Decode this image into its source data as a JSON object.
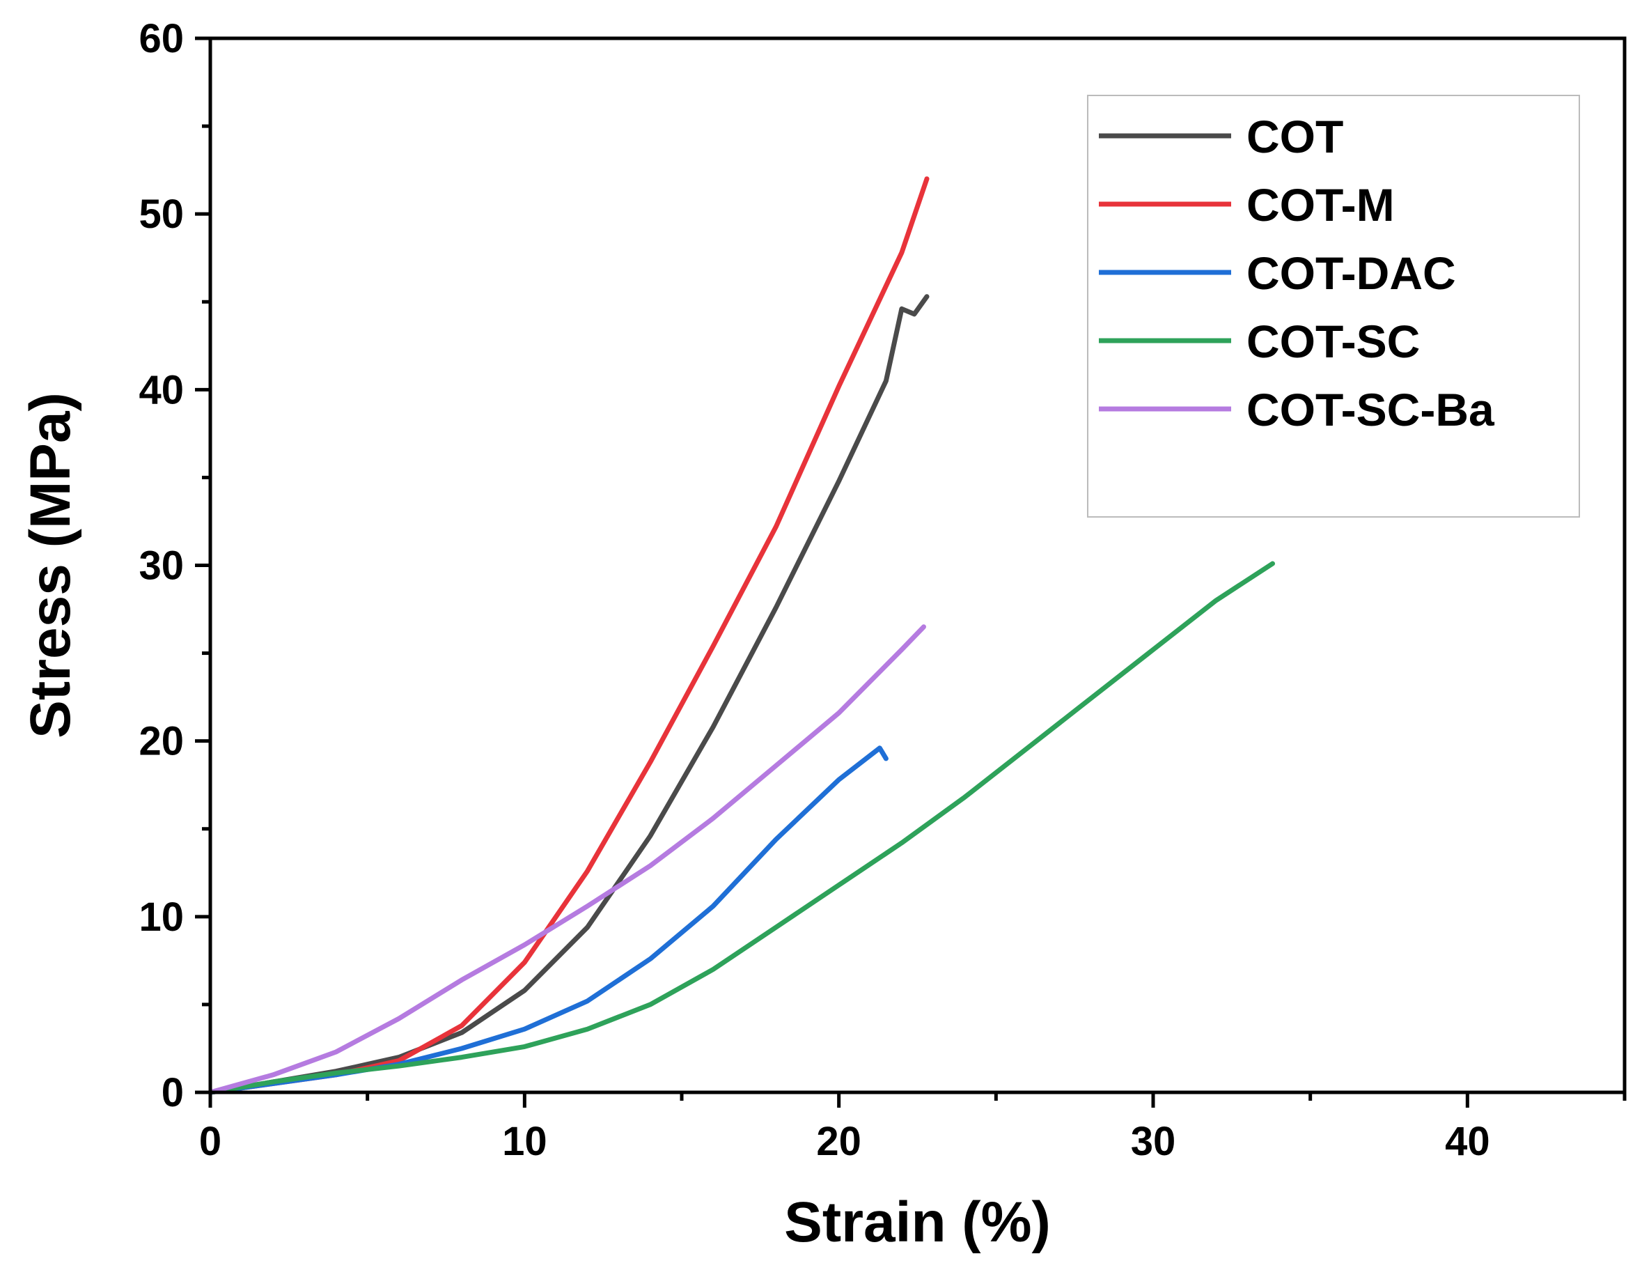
{
  "chart_data": {
    "type": "line",
    "title": "",
    "xlabel": "Strain (%)",
    "ylabel": "Stress (MPa)",
    "xlim": [
      0,
      45
    ],
    "ylim": [
      0,
      60
    ],
    "xticks": [
      0,
      10,
      20,
      30,
      40
    ],
    "yticks": [
      0,
      10,
      20,
      30,
      40,
      50,
      60
    ],
    "grid": false,
    "legend_position": "top-right",
    "series": [
      {
        "name": "COT",
        "color": "#4a4a4a",
        "x": [
          0,
          2,
          4,
          6,
          8,
          10,
          12,
          14,
          16,
          18,
          20,
          21.5,
          22,
          22.4,
          22.8
        ],
        "y": [
          0,
          0.6,
          1.2,
          2.0,
          3.4,
          5.8,
          9.4,
          14.6,
          20.8,
          27.6,
          34.8,
          40.5,
          44.6,
          44.3,
          45.3
        ]
      },
      {
        "name": "COT-M",
        "color": "#e8333a",
        "x": [
          0,
          2,
          4,
          6,
          8,
          10,
          12,
          14,
          16,
          18,
          20,
          22,
          22.8
        ],
        "y": [
          0,
          0.5,
          1.0,
          1.8,
          3.8,
          7.4,
          12.6,
          18.8,
          25.4,
          32.2,
          40.2,
          47.8,
          52.0
        ]
      },
      {
        "name": "COT-DAC",
        "color": "#1f6fd6",
        "x": [
          0,
          2,
          4,
          6,
          8,
          10,
          12,
          14,
          16,
          18,
          20,
          21.3,
          21.5
        ],
        "y": [
          0,
          0.5,
          1.0,
          1.6,
          2.5,
          3.6,
          5.2,
          7.6,
          10.6,
          14.4,
          17.8,
          19.6,
          19.0
        ]
      },
      {
        "name": "COT-SC",
        "color": "#2ea25a",
        "x": [
          0,
          2,
          4,
          6,
          8,
          10,
          12,
          14,
          16,
          18,
          20,
          22,
          24,
          26,
          28,
          30,
          32,
          33.8
        ],
        "y": [
          0,
          0.6,
          1.1,
          1.5,
          2.0,
          2.6,
          3.6,
          5.0,
          7.0,
          9.4,
          11.8,
          14.2,
          16.8,
          19.6,
          22.4,
          25.2,
          28.0,
          30.1
        ]
      },
      {
        "name": "COT-SC-Ba",
        "color": "#b57be0",
        "x": [
          0,
          2,
          4,
          6,
          8,
          10,
          12,
          14,
          16,
          18,
          20,
          22,
          22.7
        ],
        "y": [
          0,
          1.0,
          2.3,
          4.2,
          6.4,
          8.4,
          10.6,
          12.9,
          15.6,
          18.6,
          21.6,
          25.2,
          26.5
        ]
      }
    ]
  }
}
